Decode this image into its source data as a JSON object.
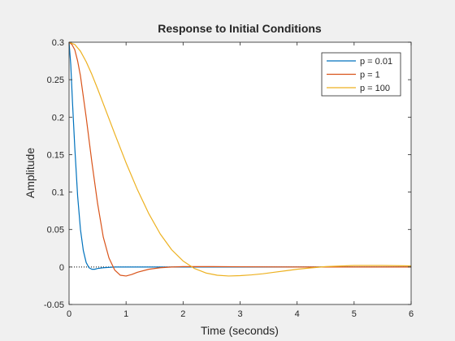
{
  "chart_data": {
    "type": "line",
    "title": "Response to Initial Conditions",
    "xlabel": "Time (seconds)",
    "ylabel": "Amplitude",
    "xlim": [
      0,
      6
    ],
    "ylim": [
      -0.05,
      0.3
    ],
    "x_ticks": [
      0,
      1,
      2,
      3,
      4,
      5,
      6
    ],
    "x_tick_labels": [
      "0",
      "1",
      "2",
      "3",
      "4",
      "5",
      "6"
    ],
    "y_ticks": [
      -0.05,
      0,
      0.05,
      0.1,
      0.15,
      0.2,
      0.25,
      0.3
    ],
    "y_tick_labels": [
      "-0.05",
      "0",
      "0.05",
      "0.1",
      "0.15",
      "0.2",
      "0.25",
      "0.3"
    ],
    "grid": false,
    "legend_position": "top-right",
    "reference_line_y": 0,
    "series": [
      {
        "name": "p = 0.01",
        "color": "#0072BD",
        "x": [
          0,
          0.03,
          0.06,
          0.1,
          0.15,
          0.2,
          0.25,
          0.3,
          0.35,
          0.4,
          0.45,
          0.5,
          0.6,
          0.8,
          1.0,
          1.5,
          2.0,
          3.0,
          4.0,
          5.0,
          6.0
        ],
        "y": [
          0.3,
          0.27,
          0.22,
          0.16,
          0.095,
          0.05,
          0.022,
          0.006,
          -0.001,
          -0.003,
          -0.003,
          -0.002,
          -0.001,
          0,
          0,
          0,
          0,
          0,
          0,
          0,
          0
        ]
      },
      {
        "name": "p = 1",
        "color": "#D95319",
        "x": [
          0,
          0.05,
          0.1,
          0.15,
          0.2,
          0.3,
          0.4,
          0.5,
          0.6,
          0.7,
          0.8,
          0.9,
          1.0,
          1.1,
          1.2,
          1.4,
          1.6,
          1.8,
          2.0,
          2.5,
          3.0,
          4.0,
          5.0,
          6.0
        ],
        "y": [
          0.3,
          0.297,
          0.29,
          0.275,
          0.255,
          0.2,
          0.14,
          0.085,
          0.04,
          0.012,
          -0.004,
          -0.011,
          -0.012,
          -0.01,
          -0.007,
          -0.003,
          -0.001,
          0,
          0.0005,
          0.0005,
          0.0003,
          0,
          0,
          0
        ]
      },
      {
        "name": "p = 100",
        "color": "#EDB120",
        "x": [
          0,
          0.1,
          0.2,
          0.3,
          0.4,
          0.5,
          0.6,
          0.8,
          1.0,
          1.2,
          1.4,
          1.6,
          1.8,
          2.0,
          2.2,
          2.4,
          2.6,
          2.8,
          3.0,
          3.2,
          3.4,
          3.6,
          3.8,
          4.0,
          4.2,
          4.5,
          5.0,
          5.5,
          6.0
        ],
        "y": [
          0.3,
          0.297,
          0.288,
          0.274,
          0.257,
          0.238,
          0.218,
          0.178,
          0.139,
          0.103,
          0.071,
          0.044,
          0.023,
          0.008,
          -0.002,
          -0.008,
          -0.011,
          -0.012,
          -0.0115,
          -0.0105,
          -0.009,
          -0.007,
          -0.005,
          -0.003,
          -0.0015,
          0.0005,
          0.002,
          0.002,
          0.0015
        ]
      }
    ]
  }
}
